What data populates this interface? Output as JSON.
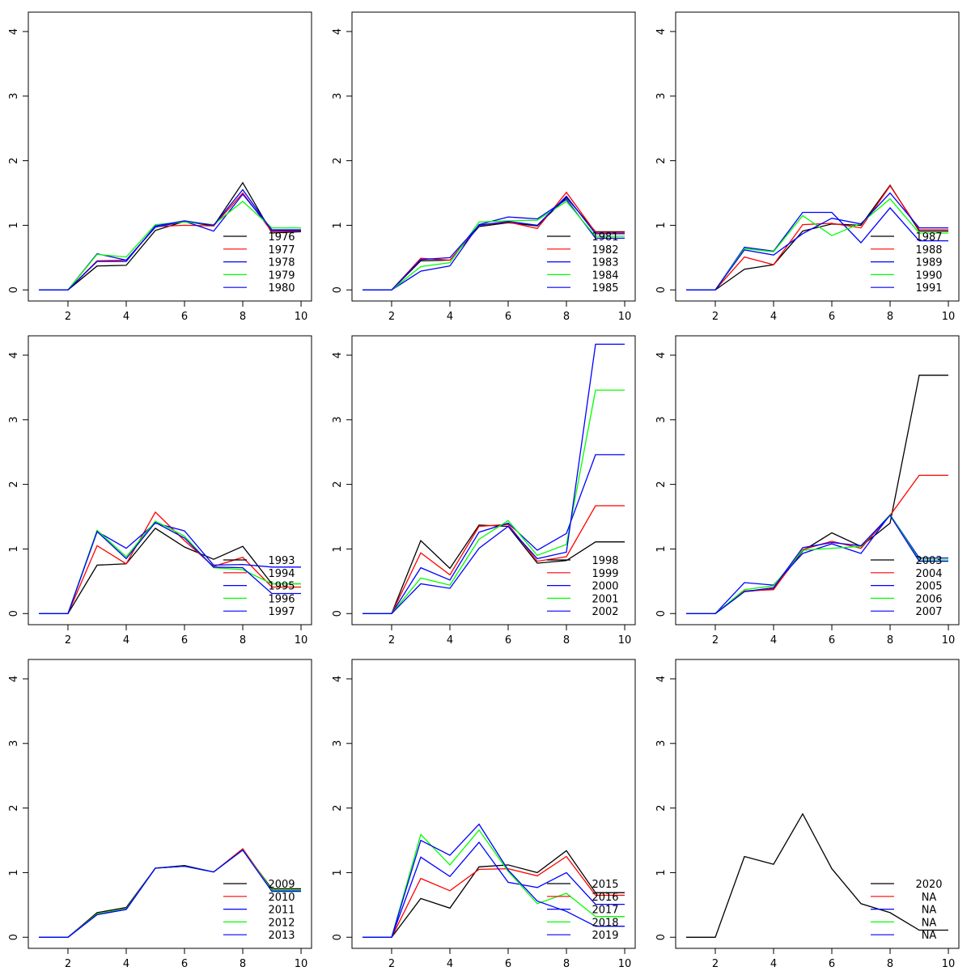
{
  "chart_data": [
    {
      "type": "line",
      "x": [
        1,
        2,
        3,
        4,
        5,
        6,
        7,
        8,
        9,
        10
      ],
      "xticks": [
        "2",
        "4",
        "6",
        "8",
        "10"
      ],
      "yticks": [
        "0",
        "1",
        "2",
        "3",
        "4"
      ],
      "ylim": [
        0,
        4.3
      ],
      "legend_position": "bottom-right",
      "series": [
        {
          "name": "1976",
          "color": "#000000",
          "values": [
            0,
            0,
            0.37,
            0.38,
            0.92,
            1.06,
            0.99,
            1.66,
            0.88,
            0.9
          ]
        },
        {
          "name": "1977",
          "color": "#ff0000",
          "values": [
            0,
            0,
            0.45,
            0.46,
            0.98,
            1.0,
            0.99,
            1.5,
            0.9,
            0.91
          ]
        },
        {
          "name": "1978",
          "color": "#0000ff",
          "values": [
            0,
            0,
            0.56,
            0.46,
            0.97,
            1.06,
            0.91,
            1.48,
            0.93,
            0.93
          ]
        },
        {
          "name": "1979",
          "color": "#00ff00",
          "values": [
            0,
            0,
            0.55,
            0.51,
            1.01,
            1.05,
            1.01,
            1.37,
            0.96,
            0.96
          ]
        },
        {
          "name": "1980",
          "color": "#0000ff",
          "values": [
            0,
            0,
            0.44,
            0.44,
            0.99,
            1.07,
            1.0,
            1.55,
            0.92,
            0.92
          ]
        }
      ]
    },
    {
      "type": "line",
      "x": [
        1,
        2,
        3,
        4,
        5,
        6,
        7,
        8,
        9,
        10
      ],
      "xticks": [
        "2",
        "4",
        "6",
        "8",
        "10"
      ],
      "yticks": [
        "0",
        "1",
        "2",
        "3",
        "4"
      ],
      "ylim": [
        0,
        4.3
      ],
      "legend_position": "bottom-right",
      "series": [
        {
          "name": "1981",
          "color": "#000000",
          "values": [
            0,
            0,
            0.45,
            0.46,
            0.98,
            1.04,
            0.99,
            1.43,
            0.9,
            0.9
          ]
        },
        {
          "name": "1982",
          "color": "#ff0000",
          "values": [
            0,
            0,
            0.49,
            0.46,
            1.0,
            1.05,
            0.95,
            1.51,
            0.89,
            0.89
          ]
        },
        {
          "name": "1983",
          "color": "#0000ff",
          "values": [
            0,
            0,
            0.29,
            0.37,
            1.01,
            1.13,
            1.1,
            1.4,
            0.8,
            0.8
          ]
        },
        {
          "name": "1984",
          "color": "#00ff00",
          "values": [
            0,
            0,
            0.36,
            0.42,
            1.05,
            1.07,
            1.08,
            1.37,
            0.83,
            0.83
          ]
        },
        {
          "name": "1985",
          "color": "#0000ff",
          "values": [
            0,
            0,
            0.47,
            0.5,
            1.0,
            1.06,
            1.0,
            1.45,
            0.87,
            0.87
          ]
        }
      ]
    },
    {
      "type": "line",
      "x": [
        1,
        2,
        3,
        4,
        5,
        6,
        7,
        8,
        9,
        10
      ],
      "xticks": [
        "2",
        "4",
        "6",
        "8",
        "10"
      ],
      "yticks": [
        "0",
        "1",
        "2",
        "3",
        "4"
      ],
      "ylim": [
        0,
        4.3
      ],
      "legend_position": "bottom-right",
      "series": [
        {
          "name": "1987",
          "color": "#000000",
          "values": [
            0,
            0,
            0.32,
            0.39,
            0.91,
            1.02,
            1.0,
            1.62,
            0.91,
            0.91
          ]
        },
        {
          "name": "1988",
          "color": "#ff0000",
          "values": [
            0,
            0,
            0.51,
            0.39,
            1.01,
            1.03,
            0.96,
            1.61,
            0.93,
            0.93
          ]
        },
        {
          "name": "1989",
          "color": "#0000ff",
          "values": [
            0,
            0,
            0.66,
            0.6,
            1.2,
            1.2,
            0.73,
            1.27,
            0.76,
            0.76
          ]
        },
        {
          "name": "1990",
          "color": "#00ff00",
          "values": [
            0,
            0,
            0.64,
            0.59,
            1.15,
            0.84,
            1.03,
            1.41,
            0.88,
            0.88
          ]
        },
        {
          "name": "1991",
          "color": "#0000ff",
          "values": [
            0,
            0,
            0.62,
            0.54,
            0.87,
            1.11,
            1.02,
            1.5,
            0.96,
            0.96
          ]
        }
      ]
    },
    {
      "type": "line",
      "x": [
        1,
        2,
        3,
        4,
        5,
        6,
        7,
        8,
        9,
        10
      ],
      "xticks": [
        "2",
        "4",
        "6",
        "8",
        "10"
      ],
      "yticks": [
        "0",
        "1",
        "2",
        "3",
        "4"
      ],
      "ylim": [
        0,
        4.3
      ],
      "legend_position": "bottom-right",
      "series": [
        {
          "name": "1993",
          "color": "#000000",
          "values": [
            0,
            0,
            0.75,
            0.77,
            1.32,
            1.03,
            0.84,
            1.04,
            0.46,
            0.46
          ]
        },
        {
          "name": "1994",
          "color": "#ff0000",
          "values": [
            0,
            0,
            1.05,
            0.77,
            1.57,
            1.13,
            0.73,
            0.87,
            0.41,
            0.41
          ]
        },
        {
          "name": "1995",
          "color": "#0000ff",
          "values": [
            0,
            0,
            1.27,
            1.01,
            1.4,
            1.28,
            0.75,
            0.76,
            0.72,
            0.72
          ]
        },
        {
          "name": "1996",
          "color": "#00ff00",
          "values": [
            0,
            0,
            1.29,
            0.88,
            1.43,
            1.2,
            0.71,
            0.68,
            0.46,
            0.46
          ]
        },
        {
          "name": "1997",
          "color": "#0000ff",
          "values": [
            0,
            0,
            1.27,
            0.85,
            1.41,
            1.17,
            0.72,
            0.71,
            0.31,
            0.31
          ]
        }
      ]
    },
    {
      "type": "line",
      "x": [
        1,
        2,
        3,
        4,
        5,
        6,
        7,
        8,
        9,
        10
      ],
      "xticks": [
        "2",
        "4",
        "6",
        "8",
        "10"
      ],
      "yticks": [
        "0",
        "1",
        "2",
        "3",
        "4"
      ],
      "ylim": [
        0,
        4.3
      ],
      "legend_position": "bottom-right",
      "series": [
        {
          "name": "1998",
          "color": "#000000",
          "values": [
            0,
            0,
            1.13,
            0.7,
            1.37,
            1.35,
            0.78,
            0.82,
            1.11,
            1.11
          ]
        },
        {
          "name": "1999",
          "color": "#ff0000",
          "values": [
            0,
            0,
            0.94,
            0.6,
            1.35,
            1.38,
            0.81,
            0.88,
            1.67,
            1.67
          ]
        },
        {
          "name": "2000",
          "color": "#0000ff",
          "values": [
            0,
            0,
            0.71,
            0.52,
            1.26,
            1.4,
            0.98,
            1.24,
            2.46,
            2.46
          ]
        },
        {
          "name": "2001",
          "color": "#00ff00",
          "values": [
            0,
            0,
            0.55,
            0.44,
            1.15,
            1.44,
            0.9,
            1.07,
            3.46,
            3.46
          ]
        },
        {
          "name": "2002",
          "color": "#0000ff",
          "values": [
            0,
            0,
            0.46,
            0.39,
            1.01,
            1.35,
            0.85,
            0.95,
            4.17,
            4.17
          ]
        }
      ]
    },
    {
      "type": "line",
      "x": [
        1,
        2,
        3,
        4,
        5,
        6,
        7,
        8,
        9,
        10
      ],
      "xticks": [
        "2",
        "4",
        "6",
        "8",
        "10"
      ],
      "yticks": [
        "0",
        "1",
        "2",
        "3",
        "4"
      ],
      "ylim": [
        0,
        4.3
      ],
      "legend_position": "bottom-right",
      "series": [
        {
          "name": "2003",
          "color": "#000000",
          "values": [
            0,
            0,
            0.34,
            0.38,
            0.97,
            1.25,
            1.04,
            1.4,
            3.69,
            3.69
          ]
        },
        {
          "name": "2004",
          "color": "#ff0000",
          "values": [
            0,
            0,
            0.35,
            0.37,
            0.99,
            1.12,
            1.01,
            1.52,
            2.14,
            2.14
          ]
        },
        {
          "name": "2005",
          "color": "#0000ff",
          "values": [
            0,
            0,
            0.48,
            0.44,
            0.93,
            1.08,
            0.93,
            1.53,
            0.86,
            0.86
          ]
        },
        {
          "name": "2006",
          "color": "#00ff00",
          "values": [
            0,
            0,
            0.37,
            0.43,
            0.98,
            1.01,
            1.04,
            1.53,
            0.83,
            0.83
          ]
        },
        {
          "name": "2007",
          "color": "#0000ff",
          "values": [
            0,
            0,
            0.34,
            0.4,
            1.02,
            1.1,
            1.05,
            1.52,
            0.81,
            0.81
          ]
        }
      ]
    },
    {
      "type": "line",
      "x": [
        1,
        2,
        3,
        4,
        5,
        6,
        7,
        8,
        9,
        10
      ],
      "xticks": [
        "2",
        "4",
        "6",
        "8",
        "10"
      ],
      "yticks": [
        "0",
        "1",
        "2",
        "3",
        "4"
      ],
      "ylim": [
        0,
        4.3
      ],
      "legend_position": "bottom-right",
      "series": [
        {
          "name": "2009",
          "color": "#000000",
          "values": [
            0,
            0,
            0.38,
            0.46,
            1.07,
            1.11,
            1.01,
            1.35,
            0.75,
            0.75
          ]
        },
        {
          "name": "2010",
          "color": "#ff0000",
          "values": [
            0,
            0,
            0.36,
            0.44,
            1.07,
            1.1,
            1.01,
            1.37,
            0.73,
            0.73
          ]
        },
        {
          "name": "2011",
          "color": "#0000ff",
          "values": [
            0,
            0,
            0.35,
            0.43,
            1.07,
            1.1,
            1.01,
            1.35,
            0.72,
            0.72
          ]
        },
        {
          "name": "2012",
          "color": "#00ff00",
          "values": [
            0,
            0,
            0.36,
            0.44,
            1.07,
            1.1,
            1.01,
            1.35,
            0.73,
            0.73
          ]
        },
        {
          "name": "2013",
          "color": "#0000ff",
          "values": [
            0,
            0,
            0.35,
            0.43,
            1.07,
            1.1,
            1.01,
            1.35,
            0.71,
            0.71
          ]
        }
      ]
    },
    {
      "type": "line",
      "x": [
        1,
        2,
        3,
        4,
        5,
        6,
        7,
        8,
        9,
        10
      ],
      "xticks": [
        "2",
        "4",
        "6",
        "8",
        "10"
      ],
      "yticks": [
        "0",
        "1",
        "2",
        "3",
        "4"
      ],
      "ylim": [
        0,
        4.3
      ],
      "legend_position": "bottom-right",
      "series": [
        {
          "name": "2015",
          "color": "#000000",
          "values": [
            0,
            0,
            0.6,
            0.45,
            1.09,
            1.12,
            1.0,
            1.34,
            0.69,
            0.69
          ]
        },
        {
          "name": "2016",
          "color": "#ff0000",
          "values": [
            0,
            0,
            0.91,
            0.72,
            1.05,
            1.06,
            0.95,
            1.25,
            0.65,
            0.65
          ]
        },
        {
          "name": "2017",
          "color": "#0000ff",
          "values": [
            0,
            0,
            1.24,
            0.94,
            1.47,
            0.85,
            0.77,
            1.0,
            0.51,
            0.51
          ]
        },
        {
          "name": "2018",
          "color": "#00ff00",
          "values": [
            0,
            0,
            1.59,
            1.12,
            1.66,
            1.02,
            0.52,
            0.68,
            0.32,
            0.32
          ]
        },
        {
          "name": "2019",
          "color": "#0000ff",
          "values": [
            0,
            0,
            1.5,
            1.27,
            1.75,
            1.04,
            0.56,
            0.4,
            0.17,
            0.17
          ]
        }
      ]
    },
    {
      "type": "line",
      "x": [
        1,
        2,
        3,
        4,
        5,
        6,
        7,
        8,
        9,
        10
      ],
      "xticks": [
        "2",
        "4",
        "6",
        "8",
        "10"
      ],
      "yticks": [
        "0",
        "1",
        "2",
        "3",
        "4"
      ],
      "ylim": [
        0,
        4.3
      ],
      "legend_position": "bottom-right",
      "series": [
        {
          "name": "2020",
          "color": "#000000",
          "values": [
            0,
            0,
            1.25,
            1.13,
            1.91,
            1.06,
            0.52,
            0.38,
            0.11,
            0.11
          ]
        }
      ],
      "legend_entries": [
        {
          "name": "2020",
          "color": "#000000"
        },
        {
          "name": "NA",
          "color": "#ff0000"
        },
        {
          "name": "NA",
          "color": "#0000ff"
        },
        {
          "name": "NA",
          "color": "#00ff00"
        },
        {
          "name": "NA",
          "color": "#0000ff"
        }
      ]
    }
  ]
}
